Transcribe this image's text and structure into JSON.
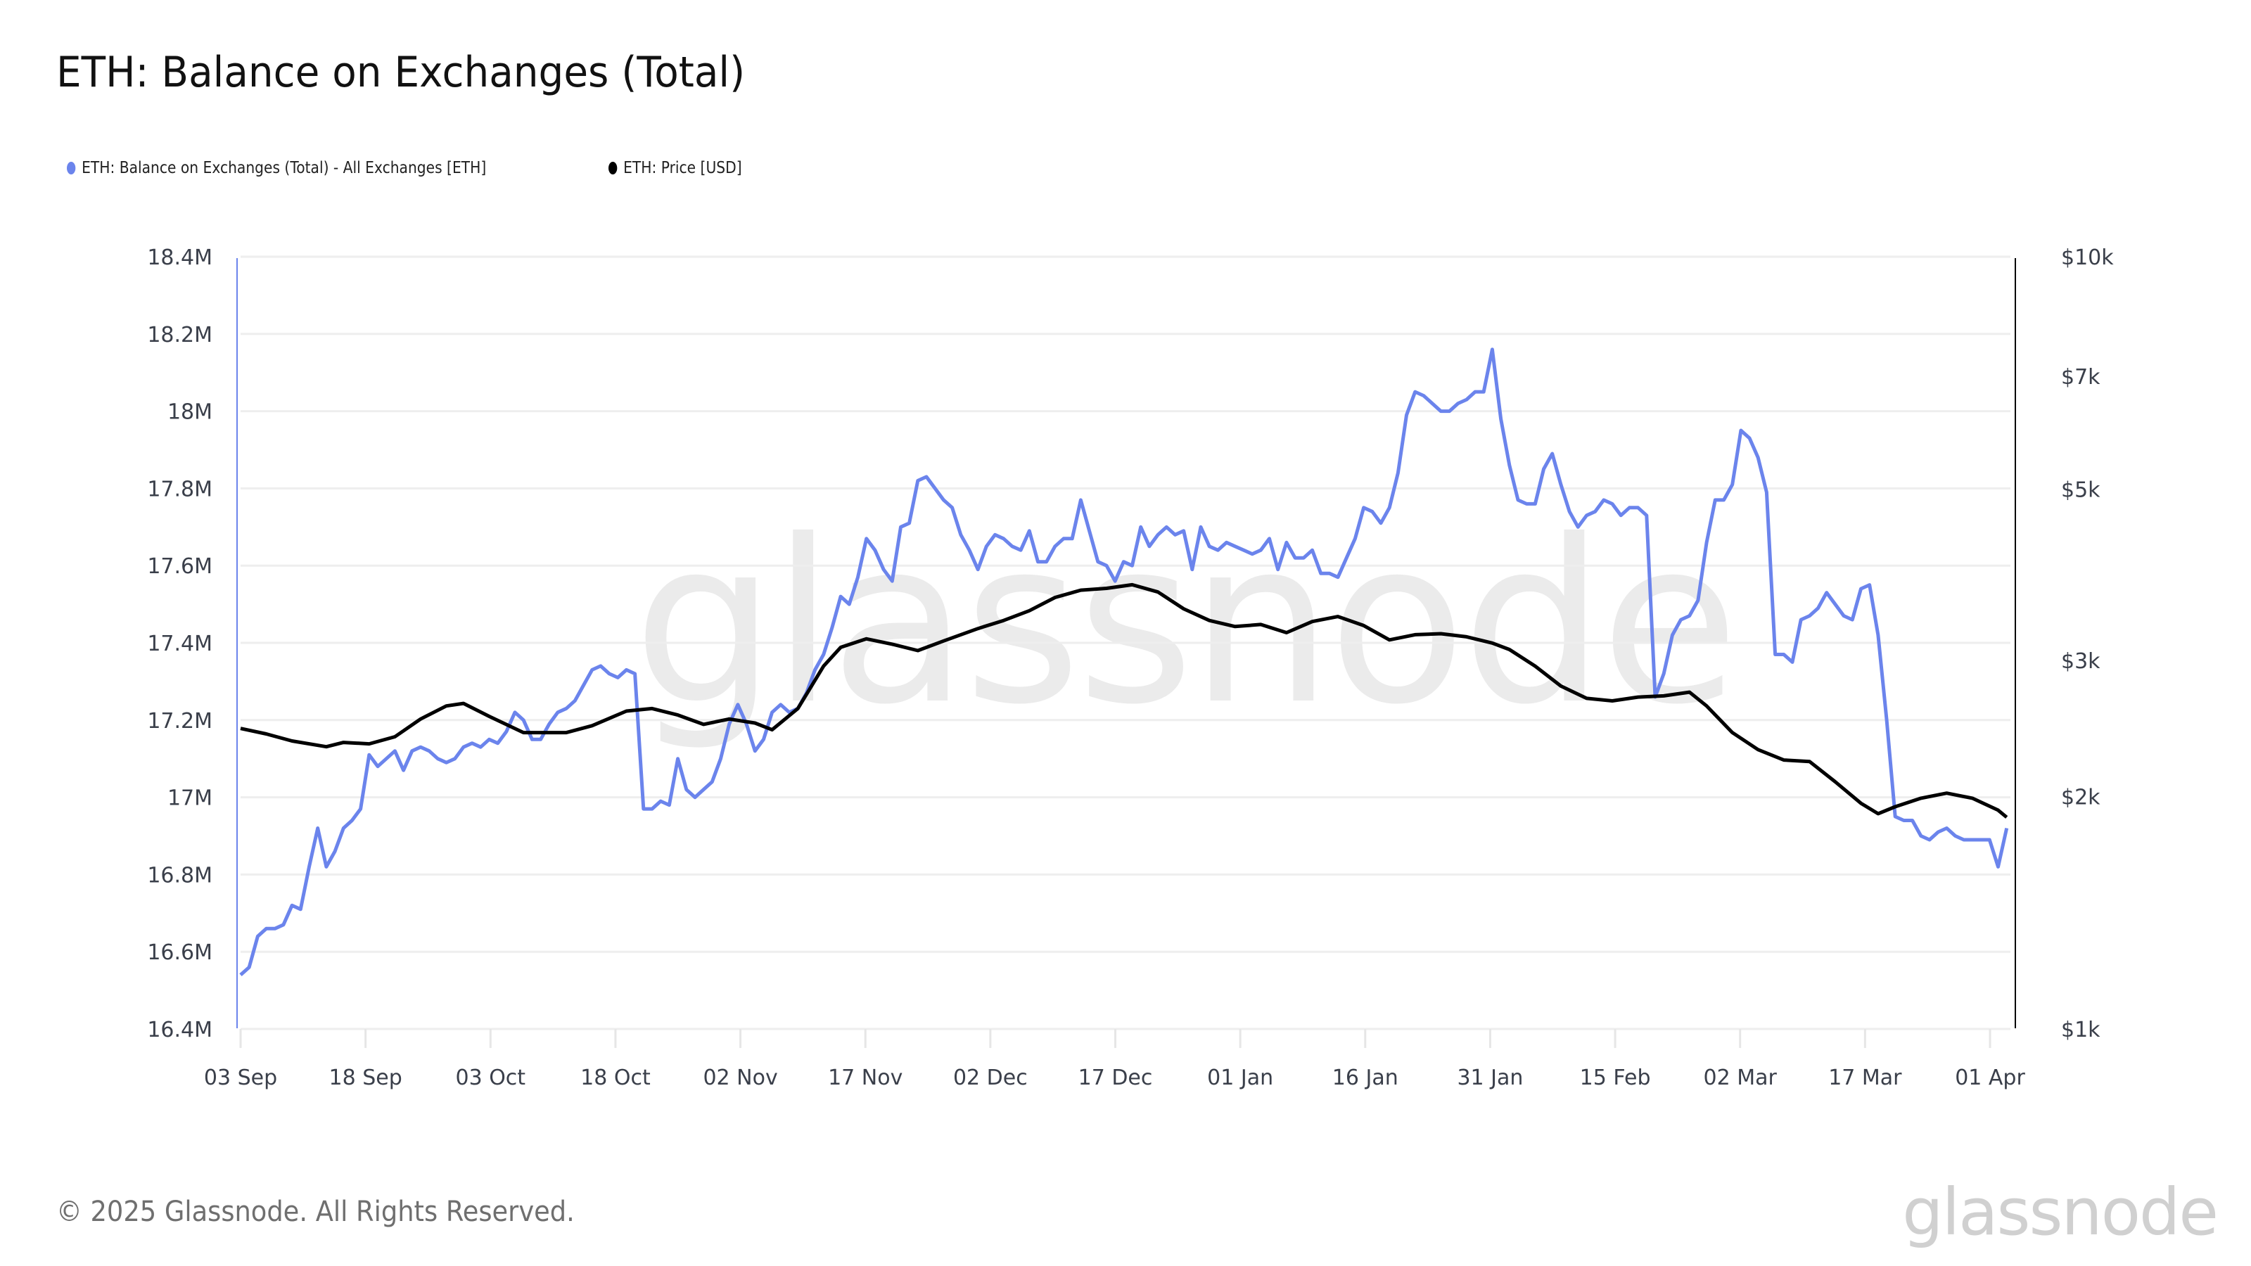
{
  "header": {
    "title": "ETH: Balance on Exchanges (Total)"
  },
  "legend": {
    "items": [
      {
        "label": "ETH: Balance on Exchanges (Total) - All Exchanges [ETH]",
        "color": "#6b84ec"
      },
      {
        "label": "ETH: Price [USD]",
        "color": "#000000"
      }
    ]
  },
  "footer": {
    "copyright": "© 2025 Glassnode. All Rights Reserved.",
    "brand": "glassnode"
  },
  "watermark": "glassnode",
  "chart_data": {
    "type": "line",
    "title": "ETH: Balance on Exchanges (Total)",
    "xlabel": "",
    "ylabel": "",
    "x_range": [
      "03 Sep 2024",
      "03 Apr 2025"
    ],
    "x_ticks": [
      "03 Sep",
      "18 Sep",
      "03 Oct",
      "18 Oct",
      "02 Nov",
      "17 Nov",
      "02 Dec",
      "17 Dec",
      "01 Jan",
      "16 Jan",
      "31 Jan",
      "15 Feb",
      "02 Mar",
      "17 Mar",
      "01 Apr"
    ],
    "y_left": {
      "label": "ETH Balance",
      "ticks": [
        "18.4M",
        "18.2M",
        "18M",
        "17.8M",
        "17.6M",
        "17.4M",
        "17.2M",
        "17M",
        "16.8M",
        "16.6M",
        "16.4M"
      ],
      "ylim": [
        16.4,
        18.4
      ],
      "unit": "M ETH"
    },
    "y_right": {
      "label": "Price USD",
      "scale": "log",
      "ticks": [
        "$10k",
        "$7k",
        "$5k",
        "$3k",
        "$2k",
        "$1k"
      ],
      "tick_values": [
        10000,
        7000,
        5000,
        3000,
        2000,
        1000
      ],
      "ylim": [
        1000,
        10000
      ]
    },
    "grid": true,
    "legend_position": "top-left",
    "series": [
      {
        "name": "ETH: Balance on Exchanges (Total) - All Exchanges [ETH]",
        "axis": "left",
        "color": "#6b84ec",
        "values": [
          16.54,
          16.56,
          16.64,
          16.66,
          16.66,
          16.67,
          16.72,
          16.71,
          16.82,
          16.92,
          16.82,
          16.86,
          16.92,
          16.94,
          16.97,
          17.11,
          17.08,
          17.1,
          17.12,
          17.07,
          17.12,
          17.13,
          17.12,
          17.1,
          17.09,
          17.1,
          17.13,
          17.14,
          17.13,
          17.15,
          17.14,
          17.17,
          17.22,
          17.2,
          17.15,
          17.15,
          17.19,
          17.22,
          17.23,
          17.25,
          17.29,
          17.33,
          17.34,
          17.32,
          17.31,
          17.33,
          17.32,
          16.97,
          16.97,
          16.99,
          16.98,
          17.1,
          17.02,
          17.0,
          17.02,
          17.04,
          17.1,
          17.19,
          17.24,
          17.19,
          17.12,
          17.15,
          17.22,
          17.24,
          17.22,
          17.23,
          17.27,
          17.33,
          17.37,
          17.44,
          17.52,
          17.5,
          17.57,
          17.67,
          17.64,
          17.59,
          17.56,
          17.7,
          17.71,
          17.82,
          17.83,
          17.8,
          17.77,
          17.75,
          17.68,
          17.64,
          17.59,
          17.65,
          17.68,
          17.67,
          17.65,
          17.64,
          17.69,
          17.61,
          17.61,
          17.65,
          17.67,
          17.67,
          17.77,
          17.69,
          17.61,
          17.6,
          17.56,
          17.61,
          17.6,
          17.7,
          17.65,
          17.68,
          17.7,
          17.68,
          17.69,
          17.59,
          17.7,
          17.65,
          17.64,
          17.66,
          17.65,
          17.64,
          17.63,
          17.64,
          17.67,
          17.59,
          17.66,
          17.62,
          17.62,
          17.64,
          17.58,
          17.58,
          17.57,
          17.62,
          17.67,
          17.75,
          17.74,
          17.71,
          17.75,
          17.84,
          17.99,
          18.05,
          18.04,
          18.02,
          18.0,
          18.0,
          18.02,
          18.03,
          18.05,
          18.05,
          18.16,
          17.98,
          17.86,
          17.77,
          17.76,
          17.76,
          17.85,
          17.89,
          17.81,
          17.74,
          17.7,
          17.73,
          17.74,
          17.77,
          17.76,
          17.73,
          17.75,
          17.75,
          17.73,
          17.26,
          17.32,
          17.42,
          17.46,
          17.47,
          17.51,
          17.66,
          17.77,
          17.77,
          17.81,
          17.95,
          17.93,
          17.88,
          17.79,
          17.37,
          17.37,
          17.35,
          17.46,
          17.47,
          17.49,
          17.53,
          17.5,
          17.47,
          17.46,
          17.54,
          17.55,
          17.42,
          17.2,
          16.95,
          16.94,
          16.94,
          16.9,
          16.89,
          16.91,
          16.92,
          16.9,
          16.89,
          16.89,
          16.89,
          16.89,
          16.82,
          16.92
        ]
      },
      {
        "name": "ETH: Price [USD]",
        "axis": "right",
        "color": "#000000",
        "anchors_day_value": [
          [
            0,
            2450
          ],
          [
            3,
            2410
          ],
          [
            6,
            2360
          ],
          [
            10,
            2320
          ],
          [
            12,
            2350
          ],
          [
            15,
            2340
          ],
          [
            18,
            2390
          ],
          [
            21,
            2520
          ],
          [
            24,
            2620
          ],
          [
            26,
            2640
          ],
          [
            29,
            2540
          ],
          [
            33,
            2420
          ],
          [
            38,
            2420
          ],
          [
            41,
            2470
          ],
          [
            45,
            2580
          ],
          [
            48,
            2600
          ],
          [
            51,
            2550
          ],
          [
            54,
            2480
          ],
          [
            57,
            2520
          ],
          [
            60,
            2490
          ],
          [
            62,
            2440
          ],
          [
            65,
            2600
          ],
          [
            68,
            2950
          ],
          [
            70,
            3120
          ],
          [
            73,
            3200
          ],
          [
            76,
            3150
          ],
          [
            79,
            3090
          ],
          [
            82,
            3180
          ],
          [
            86,
            3300
          ],
          [
            89,
            3380
          ],
          [
            92,
            3480
          ],
          [
            95,
            3620
          ],
          [
            98,
            3700
          ],
          [
            101,
            3720
          ],
          [
            104,
            3760
          ],
          [
            107,
            3680
          ],
          [
            110,
            3500
          ],
          [
            113,
            3380
          ],
          [
            116,
            3320
          ],
          [
            119,
            3340
          ],
          [
            122,
            3260
          ],
          [
            125,
            3370
          ],
          [
            128,
            3420
          ],
          [
            131,
            3330
          ],
          [
            134,
            3190
          ],
          [
            137,
            3240
          ],
          [
            140,
            3250
          ],
          [
            143,
            3220
          ],
          [
            146,
            3160
          ],
          [
            148,
            3100
          ],
          [
            151,
            2950
          ],
          [
            154,
            2780
          ],
          [
            157,
            2680
          ],
          [
            160,
            2660
          ],
          [
            163,
            2690
          ],
          [
            166,
            2700
          ],
          [
            169,
            2730
          ],
          [
            171,
            2620
          ],
          [
            174,
            2420
          ],
          [
            177,
            2300
          ],
          [
            180,
            2230
          ],
          [
            183,
            2220
          ],
          [
            186,
            2090
          ],
          [
            189,
            1960
          ],
          [
            191,
            1900
          ],
          [
            193,
            1940
          ],
          [
            196,
            1990
          ],
          [
            199,
            2020
          ],
          [
            202,
            1990
          ],
          [
            205,
            1920
          ],
          [
            206,
            1880
          ]
        ]
      }
    ]
  }
}
